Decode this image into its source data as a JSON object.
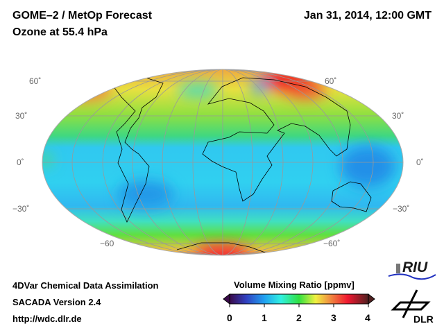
{
  "header": {
    "title": "GOME–2 / MetOp Forecast",
    "subtitle": "Ozone at 55.4 hPa",
    "datetime": "Jan 31, 2014, 12:00 GMT"
  },
  "map": {
    "lat_labels_left": [
      "60˚",
      "30˚",
      "0˚",
      "−30˚",
      "−60"
    ],
    "lat_labels_right": [
      "60˚",
      "30˚",
      "0˚",
      "−30˚",
      "−60˚"
    ]
  },
  "footer": {
    "line1": "4DVar Chemical Data Assimilation",
    "line2": "SACADA Version 2.4",
    "line3": "http://wdc.dlr.de"
  },
  "colorbar": {
    "title": "Volume Mixing Ratio [ppmv]",
    "ticks": [
      "0",
      "1",
      "2",
      "3",
      "4"
    ],
    "range": [
      0,
      4
    ],
    "colors": [
      "#3a0a4a",
      "#3050d0",
      "#20a0f0",
      "#30f0e0",
      "#30e040",
      "#f0f040",
      "#f08040",
      "#f01830",
      "#c01020",
      "#502020"
    ]
  },
  "logos": {
    "riu": "RIU",
    "dlr": "DLR"
  }
}
